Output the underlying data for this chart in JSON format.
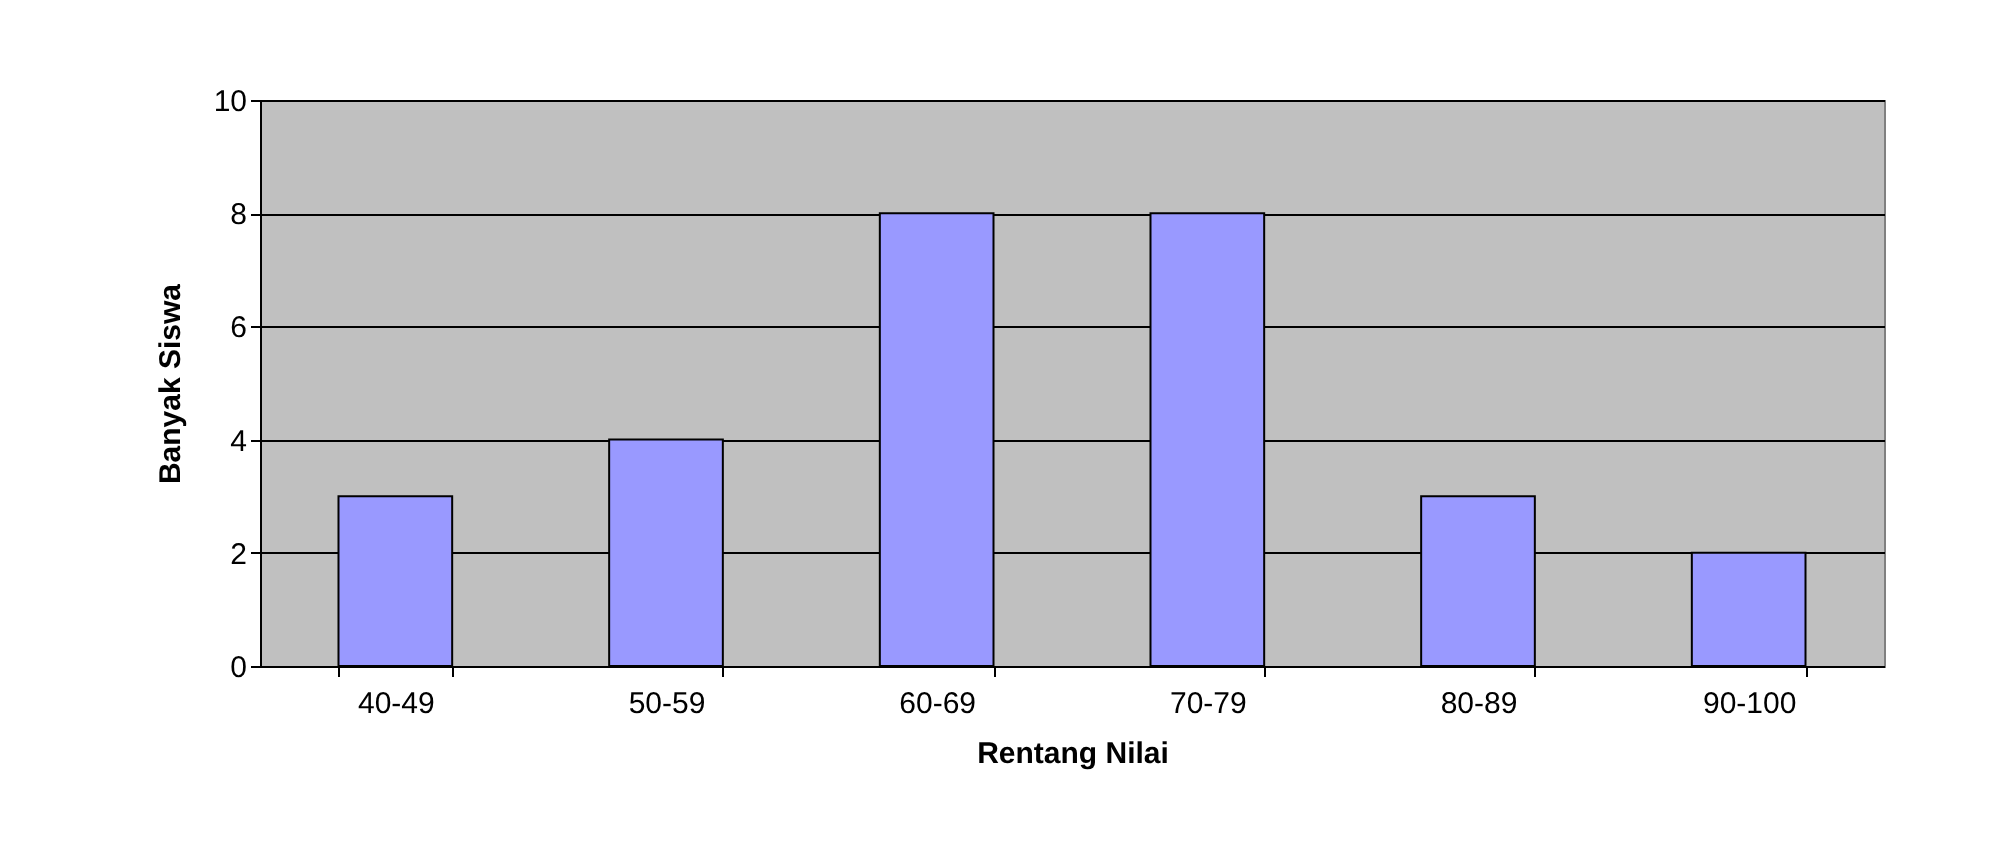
{
  "chart_data": {
    "type": "bar",
    "xlabel": "Rentang Nilai",
    "ylabel": "Banyak Siswa",
    "categories": [
      "40-49",
      "50-59",
      "60-69",
      "70-79",
      "80-89",
      "90-100"
    ],
    "values": [
      3,
      4,
      8,
      8,
      3,
      2
    ],
    "color": "#9999ff",
    "ylim": [
      0,
      10
    ],
    "yticks": [
      0,
      2,
      4,
      6,
      8,
      10
    ],
    "grid": "y"
  }
}
